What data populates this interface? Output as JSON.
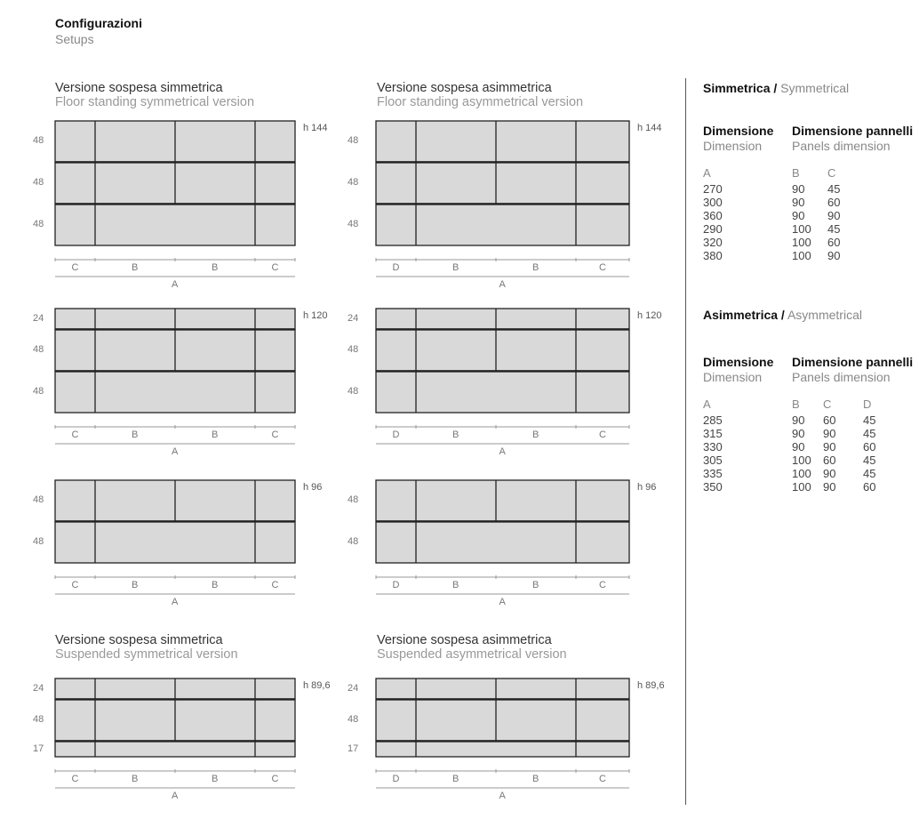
{
  "header": {
    "title": "Configurazioni",
    "subtitle": "Setups"
  },
  "sections": {
    "floor_sym": {
      "it": "Versione sospesa simmetrica",
      "en": "Floor standing symmetrical version"
    },
    "floor_asym": {
      "it": "Versione sospesa asimmetrica",
      "en": "Floor standing asymmetrical version"
    },
    "susp_sym": {
      "it": "Versione sospesa simmetrica",
      "en": "Suspended symmetrical version"
    },
    "susp_asym": {
      "it": "Versione sospesa asimmetrica",
      "en": "Suspended asymmetrical version"
    }
  },
  "diagrams": [
    {
      "variant": "symmetric",
      "height_label": "h 144",
      "rows": [
        {
          "h": "48",
          "split": true
        },
        {
          "h": "48",
          "split": true
        },
        {
          "h": "48",
          "split": false
        }
      ],
      "columns": [
        "C",
        "B",
        "B",
        "C"
      ],
      "total": "A"
    },
    {
      "variant": "asymmetric",
      "height_label": "h 144",
      "rows": [
        {
          "h": "48",
          "split": true
        },
        {
          "h": "48",
          "split": true
        },
        {
          "h": "48",
          "split": false
        }
      ],
      "columns": [
        "D",
        "B",
        "B",
        "C"
      ],
      "total": "A"
    },
    {
      "variant": "symmetric",
      "height_label": "h 120",
      "rows": [
        {
          "h": "24",
          "split": true
        },
        {
          "h": "48",
          "split": true
        },
        {
          "h": "48",
          "split": false
        }
      ],
      "columns": [
        "C",
        "B",
        "B",
        "C"
      ],
      "total": "A"
    },
    {
      "variant": "asymmetric",
      "height_label": "h 120",
      "rows": [
        {
          "h": "24",
          "split": true
        },
        {
          "h": "48",
          "split": true
        },
        {
          "h": "48",
          "split": false
        }
      ],
      "columns": [
        "D",
        "B",
        "B",
        "C"
      ],
      "total": "A"
    },
    {
      "variant": "symmetric",
      "height_label": "h 96",
      "rows": [
        {
          "h": "48",
          "split": true
        },
        {
          "h": "48",
          "split": false
        }
      ],
      "columns": [
        "C",
        "B",
        "B",
        "C"
      ],
      "total": "A"
    },
    {
      "variant": "asymmetric",
      "height_label": "h 96",
      "rows": [
        {
          "h": "48",
          "split": true
        },
        {
          "h": "48",
          "split": false
        }
      ],
      "columns": [
        "D",
        "B",
        "B",
        "C"
      ],
      "total": "A"
    },
    {
      "variant": "symmetric",
      "height_label": "h 89,6",
      "rows": [
        {
          "h": "24",
          "split": true
        },
        {
          "h": "48",
          "split": true
        },
        {
          "h": "17",
          "split": false
        }
      ],
      "columns": [
        "C",
        "B",
        "B",
        "C"
      ],
      "total": "A"
    },
    {
      "variant": "asymmetric",
      "height_label": "h 89,6",
      "rows": [
        {
          "h": "24",
          "split": true
        },
        {
          "h": "48",
          "split": true
        },
        {
          "h": "17",
          "split": false
        }
      ],
      "columns": [
        "D",
        "B",
        "B",
        "C"
      ],
      "total": "A"
    }
  ],
  "tables": {
    "symmetric": {
      "title_it": "Simmetrica /",
      "title_en": "Symmetrical",
      "dim_it": "Dimensione",
      "dim_en": "Dimension",
      "panels_it": "Dimensione pannelli",
      "panels_en": "Panels dimension",
      "columns": [
        "A",
        "B",
        "C"
      ],
      "rows": [
        [
          "270",
          "90",
          "45"
        ],
        [
          "300",
          "90",
          "60"
        ],
        [
          "360",
          "90",
          "90"
        ],
        [
          "290",
          "100",
          "45"
        ],
        [
          "320",
          "100",
          "60"
        ],
        [
          "380",
          "100",
          "90"
        ]
      ]
    },
    "asymmetric": {
      "title_it": "Asimmetrica /",
      "title_en": "Asymmetrical",
      "dim_it": "Dimensione",
      "dim_en": "Dimension",
      "panels_it": "Dimensione pannelli",
      "panels_en": "Panels dimension",
      "columns": [
        "A",
        "B",
        "C",
        "D"
      ],
      "rows": [
        [
          "285",
          "90",
          "60",
          "45"
        ],
        [
          "315",
          "90",
          "90",
          "45"
        ],
        [
          "330",
          "90",
          "90",
          "60"
        ],
        [
          "305",
          "100",
          "60",
          "45"
        ],
        [
          "335",
          "100",
          "90",
          "45"
        ],
        [
          "350",
          "100",
          "90",
          "60"
        ]
      ]
    }
  },
  "colors": {
    "panel_fill": "#d9d9d9",
    "stroke": "#222222",
    "divider": "#555555"
  }
}
